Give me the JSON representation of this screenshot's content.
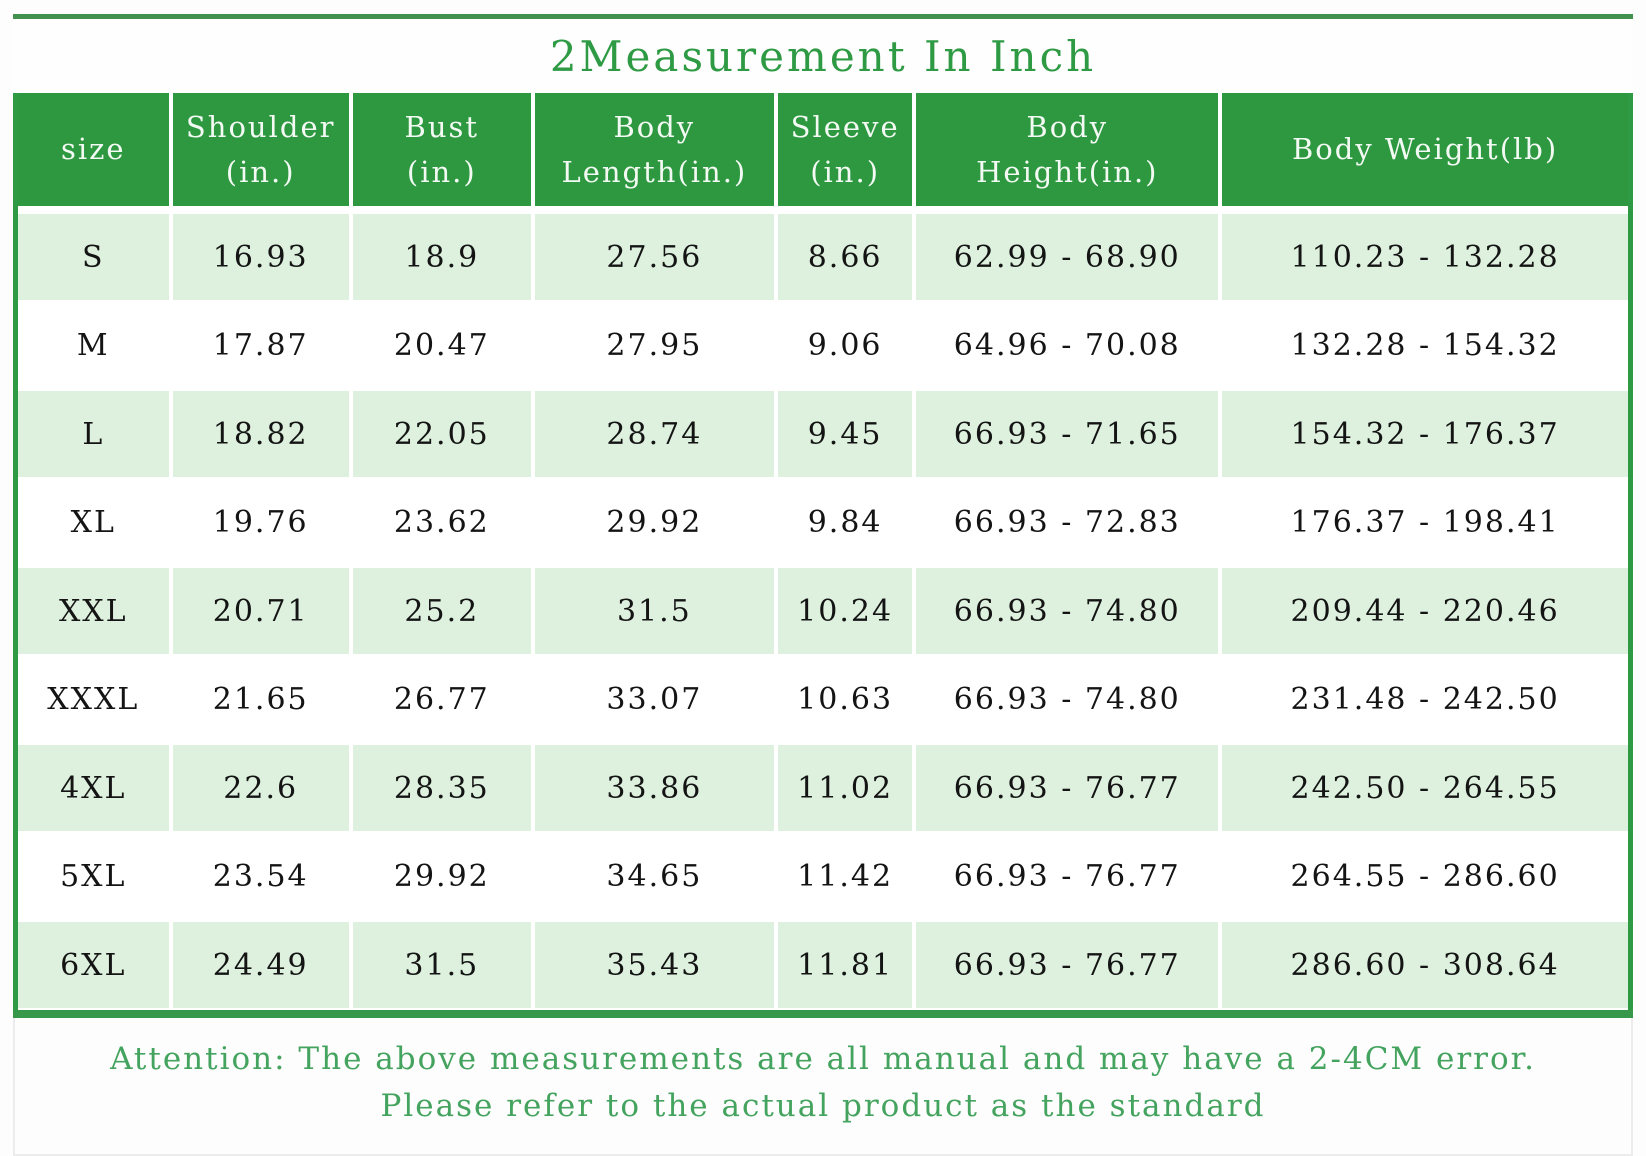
{
  "title": "2Measurement In Inch",
  "colors": {
    "header_green": "#2d9840",
    "rule_green": "#37984a",
    "striped_row_green": "#ddf1de",
    "title_green": "#2e9b44",
    "note_green": "#44a35e",
    "data_text": "#141414"
  },
  "chart_data": {
    "type": "table",
    "title": "2Measurement In Inch",
    "columns": [
      "size",
      "Shoulder\n(in.)",
      "Bust\n(in.)",
      "Body\nLength(in.)",
      "Sleeve\n(in.)",
      "Body\nHeight(in.)",
      "Body Weight(lb)"
    ],
    "rows": [
      [
        "S",
        "16.93",
        "18.9",
        "27.56",
        "8.66",
        "62.99 - 68.90",
        "110.23 - 132.28"
      ],
      [
        "M",
        "17.87",
        "20.47",
        "27.95",
        "9.06",
        "64.96 - 70.08",
        "132.28 - 154.32"
      ],
      [
        "L",
        "18.82",
        "22.05",
        "28.74",
        "9.45",
        "66.93 - 71.65",
        "154.32 - 176.37"
      ],
      [
        "XL",
        "19.76",
        "23.62",
        "29.92",
        "9.84",
        "66.93 - 72.83",
        "176.37 - 198.41"
      ],
      [
        "XXL",
        "20.71",
        "25.2",
        "31.5",
        "10.24",
        "66.93 - 74.80",
        "209.44 - 220.46"
      ],
      [
        "XXXL",
        "21.65",
        "26.77",
        "33.07",
        "10.63",
        "66.93 - 74.80",
        "231.48 - 242.50"
      ],
      [
        "4XL",
        "22.6",
        "28.35",
        "33.86",
        "11.02",
        "66.93 - 76.77",
        "242.50 - 264.55"
      ],
      [
        "5XL",
        "23.54",
        "29.92",
        "34.65",
        "11.42",
        "66.93 - 76.77",
        "264.55 - 286.60"
      ],
      [
        "6XL",
        "24.49",
        "31.5",
        "35.43",
        "11.81",
        "66.93 - 76.77",
        "286.60 - 308.64"
      ]
    ]
  },
  "attention": {
    "line1": "Attention: The above measurements are all manual and may have a 2-4CM error.",
    "line2": "Please refer to the actual product as the standard"
  }
}
